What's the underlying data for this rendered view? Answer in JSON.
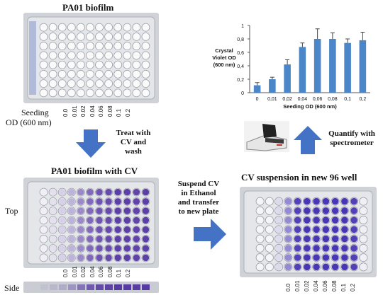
{
  "panels": {
    "top_left_title": "PA01 biofilm",
    "mid_left_title": "PA01 biofilm with CV",
    "right_title": "CV suspension in new  96 well"
  },
  "seeding": {
    "label_line1": "Seeding",
    "label_line2": "OD (600 nm)",
    "ticks": [
      "0.0",
      "0.01",
      "0.02",
      "0.04",
      "0.06",
      "0.08",
      "0.1",
      "0.2"
    ]
  },
  "view_labels": {
    "top": "Top",
    "side": "Side"
  },
  "steps": {
    "treat": [
      "Treat with",
      "CV and",
      "wash"
    ],
    "suspend": [
      "Suspend CV",
      "in Ethanol",
      "and transfer",
      "to new plate"
    ],
    "quantify": [
      "Quantify with",
      "spectrometer"
    ]
  },
  "colors": {
    "arrow": "#4472c4",
    "bar": "#4a86c8",
    "cv_purple": "#4b2a9e",
    "plate_gray": "#cfd2d6"
  },
  "chart_data": {
    "type": "bar",
    "categories": [
      "0",
      "0,01",
      "0,02",
      "0,04",
      "0,06",
      "0,08",
      "0,1",
      "0,2"
    ],
    "values": [
      0.11,
      0.2,
      0.42,
      0.68,
      0.8,
      0.8,
      0.74,
      0.78
    ],
    "errors": [
      0.04,
      0.03,
      0.07,
      0.06,
      0.15,
      0.09,
      0.06,
      0.12
    ],
    "title": "",
    "xlabel": "Seeding OD (600 nm)",
    "ylabel_lines": [
      "Crystal",
      "Violet OD",
      "(600 nm)"
    ],
    "yticks": [
      "0",
      "0,2",
      "0,4",
      "0,6",
      "0,8",
      "1"
    ],
    "ylim": [
      0,
      1
    ],
    "grid": false
  }
}
